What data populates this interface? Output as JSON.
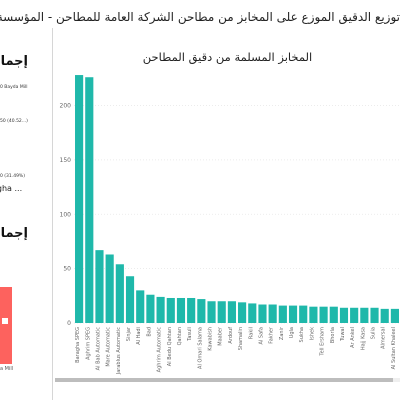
{
  "page": {
    "title": "توزيع الدقيق الموزع على المخابز من مطاحن الشركة العامة للمطاحن - المؤسسة العامة للحبوب PEG"
  },
  "left_panel": {
    "heading1": "إجمال",
    "line1": "0 Bayda Mill",
    "line2": "50 (40.52...)",
    "line3": "0 (31.49%)",
    "line4": "agha ...",
    "heading2": "إجمال",
    "footer": "a Mill",
    "accent_color": "#fd625e"
  },
  "chart_data": {
    "type": "bar",
    "title": "المخابز المسلمة من دقيق المطاحن",
    "xlabel": "",
    "ylabel": "",
    "ylim": [
      0,
      240
    ],
    "yticks": [
      0,
      50,
      100,
      150,
      200
    ],
    "grid": true,
    "bar_color": "#1fb8aa",
    "categories": [
      "Baragha SPEG",
      "Aghrim SPEG",
      "Al Bab Automatic",
      "Mare Automatic",
      "Jarablus Automatic",
      "Sinjar",
      "Al Hadi",
      "Bad",
      "Aghrim Automatic",
      "Al Bedu Qahtan",
      "Qahtan",
      "Tasuli",
      "Al Omari Salama",
      "Kawabish",
      "Maaber",
      "Ardouf",
      "Shamalin",
      "Rakil",
      "Al Safa",
      "Fakher",
      "Zanir",
      "Ugla",
      "Sukha",
      "Ishek",
      "Tell Ersham",
      "Bhorla",
      "Tuwal",
      "Ar Ankel",
      "Hajj Kasa",
      "Sulia",
      "Almersal",
      "Al Sultan Khaleel"
    ],
    "values": [
      228,
      226,
      67,
      63,
      54,
      43,
      30,
      26,
      24,
      23,
      23,
      23,
      22,
      20,
      20,
      20,
      19,
      18,
      17,
      17,
      16,
      16,
      16,
      15,
      15,
      15,
      14,
      14,
      14,
      14,
      13,
      13
    ]
  }
}
